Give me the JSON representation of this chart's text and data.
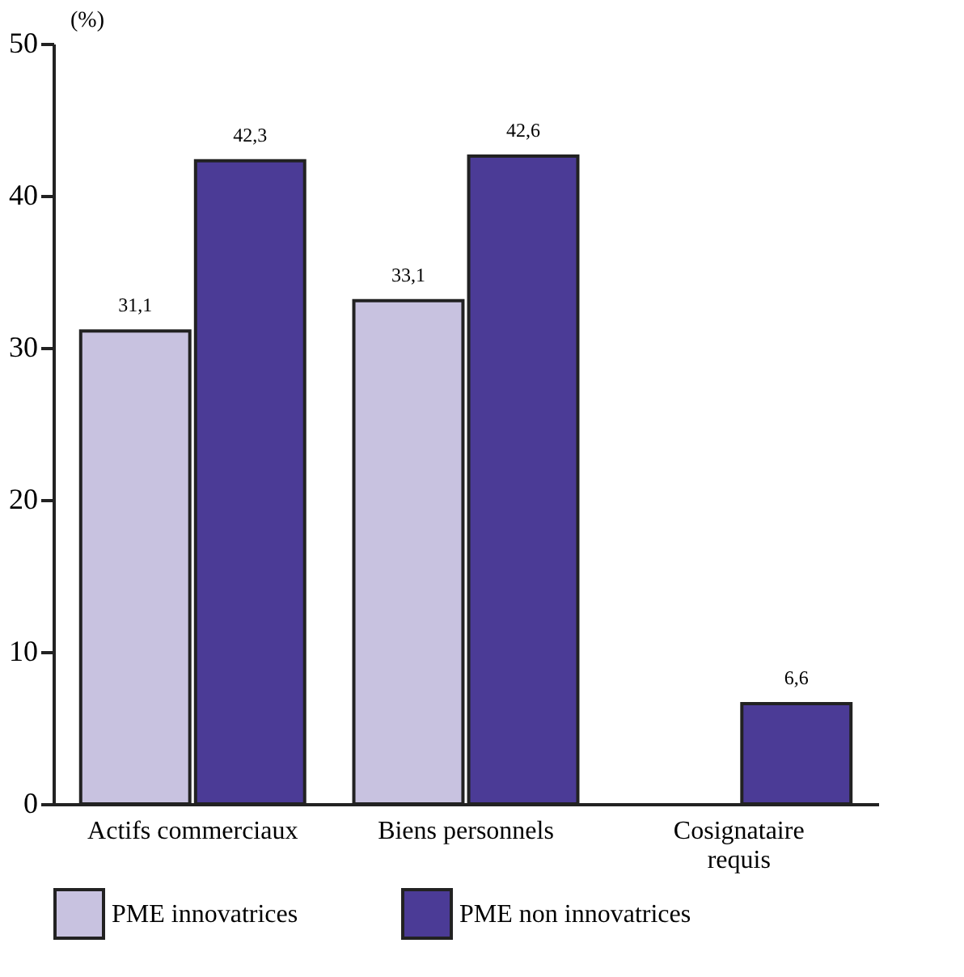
{
  "chart_data": {
    "type": "bar",
    "ylabel": "(%)",
    "categories": [
      "Actifs commerciaux",
      "Biens personnels",
      "Cosignataire\nrequis"
    ],
    "series": [
      {
        "name": "PME innovatrices",
        "color": "#c8c2e0",
        "values": [
          31.1,
          33.1,
          null
        ],
        "value_labels": [
          "31,1",
          "33,1",
          null
        ]
      },
      {
        "name": "PME non innovatrices",
        "color": "#4b3b96",
        "values": [
          42.3,
          42.6,
          6.6
        ],
        "value_labels": [
          "42,3",
          "42,6",
          "6,6"
        ]
      }
    ],
    "ylim": [
      0,
      50
    ],
    "yticks": [
      0,
      10,
      20,
      30,
      40,
      50
    ],
    "grid": false,
    "legend": "bottom"
  }
}
